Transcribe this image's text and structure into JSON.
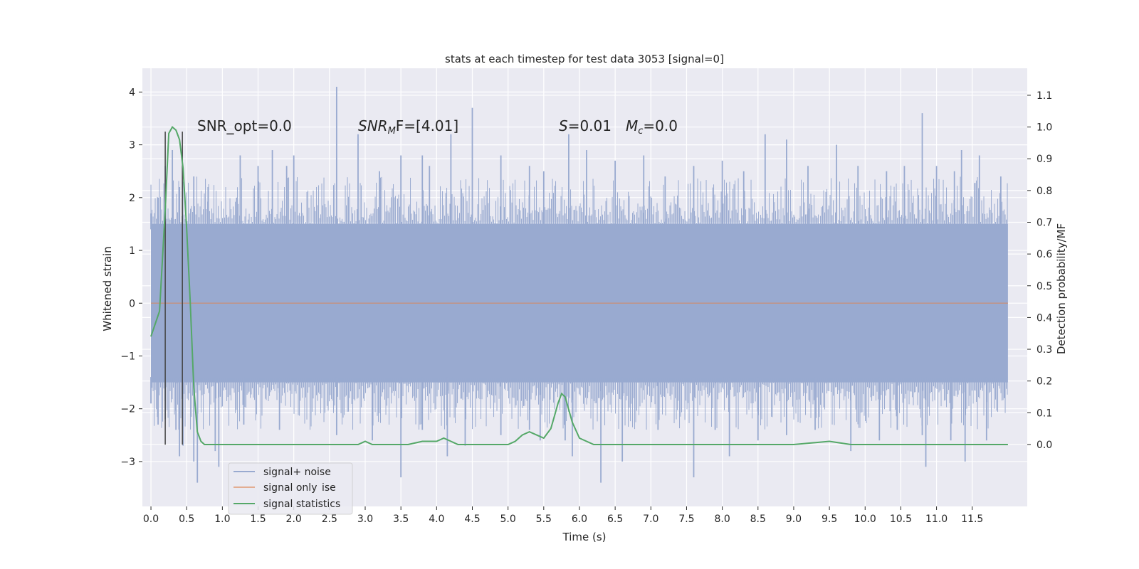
{
  "chart_data": {
    "type": "line",
    "title": "stats at each timestep for test data 3053 [signal=0]",
    "xlabel": "Time (s)",
    "ylabel": "Whitened strain",
    "y2label": "Detection probability/MF",
    "xlim": [
      -0.12,
      12.27
    ],
    "ylim": [
      -3.85,
      4.45
    ],
    "y2lim": [
      -0.195,
      1.185
    ],
    "x_ticks": [
      0.0,
      0.5,
      1.0,
      1.5,
      2.0,
      2.5,
      3.0,
      3.5,
      4.0,
      4.5,
      5.0,
      5.5,
      6.0,
      6.5,
      7.0,
      7.5,
      8.0,
      8.5,
      9.0,
      9.5,
      10.0,
      10.5,
      11.0,
      11.5
    ],
    "x_tick_labels": [
      "0.0",
      "0.5",
      "1.0",
      "1.5",
      "2.0",
      "2.5",
      "3.0",
      "3.5",
      "4.0",
      "4.5",
      "5.0",
      "5.5",
      "6.0",
      "6.5",
      "7.0",
      "7.5",
      "8.0",
      "8.5",
      "9.0",
      "9.5",
      "10.0",
      "10.5",
      "11.0",
      "11.5"
    ],
    "y_ticks": [
      -3,
      -2,
      -1,
      0,
      1,
      2,
      3,
      4
    ],
    "y_tick_labels": [
      "−3",
      "−2",
      "−1",
      "0",
      "1",
      "2",
      "3",
      "4"
    ],
    "y2_ticks": [
      0.0,
      0.1,
      0.2,
      0.3,
      0.4,
      0.5,
      0.6,
      0.7,
      0.8,
      0.9,
      1.0,
      1.1
    ],
    "y2_tick_labels": [
      "0.0",
      "0.1",
      "0.2",
      "0.3",
      "0.4",
      "0.5",
      "0.6",
      "0.7",
      "0.8",
      "0.9",
      "1.0",
      "1.1"
    ],
    "grid": true,
    "legend_position": "bottom-left",
    "noise": {
      "x_range": [
        0.0,
        12.0
      ],
      "envelope_upper": [
        1.5,
        1.5,
        1.5,
        1.5,
        1.5,
        1.5,
        1.5,
        1.5,
        1.5,
        1.5,
        1.5,
        1.5,
        1.5
      ],
      "envelope_lower": [
        -1.5,
        -1.5,
        -1.5,
        -1.5,
        -1.5,
        -1.5,
        -1.5,
        -1.5,
        -1.5,
        -1.5,
        -1.5,
        -1.5,
        -1.5
      ],
      "spikes_up": [
        [
          0.0,
          1.7
        ],
        [
          0.1,
          2.0
        ],
        [
          0.2,
          2.6
        ],
        [
          0.3,
          2.9
        ],
        [
          0.4,
          2.2
        ],
        [
          0.55,
          1.5
        ],
        [
          0.6,
          2.4
        ],
        [
          0.8,
          2.2
        ],
        [
          1.2,
          2.0
        ],
        [
          1.25,
          2.8
        ],
        [
          1.5,
          2.6
        ],
        [
          1.7,
          2.9
        ],
        [
          1.9,
          2.6
        ],
        [
          2.0,
          2.8
        ],
        [
          2.6,
          4.1
        ],
        [
          2.9,
          3.2
        ],
        [
          3.2,
          2.5
        ],
        [
          3.5,
          2.8
        ],
        [
          3.8,
          2.8
        ],
        [
          3.9,
          2.6
        ],
        [
          4.2,
          3.2
        ],
        [
          4.5,
          3.7
        ],
        [
          4.9,
          2.8
        ],
        [
          5.3,
          2.6
        ],
        [
          5.5,
          2.5
        ],
        [
          5.85,
          3.2
        ],
        [
          6.1,
          2.9
        ],
        [
          6.5,
          2.7
        ],
        [
          6.9,
          2.8
        ],
        [
          7.2,
          2.4
        ],
        [
          7.6,
          2.6
        ],
        [
          8.0,
          2.7
        ],
        [
          8.3,
          2.5
        ],
        [
          8.6,
          3.2
        ],
        [
          8.9,
          3.1
        ],
        [
          9.2,
          2.6
        ],
        [
          9.6,
          3.0
        ],
        [
          9.9,
          2.6
        ],
        [
          10.3,
          2.5
        ],
        [
          10.55,
          2.6
        ],
        [
          10.8,
          3.6
        ],
        [
          11.0,
          2.6
        ],
        [
          11.25,
          2.5
        ],
        [
          11.35,
          2.9
        ],
        [
          11.6,
          2.8
        ],
        [
          11.9,
          2.4
        ]
      ],
      "spikes_down": [
        [
          0.0,
          -1.9
        ],
        [
          0.1,
          -2.3
        ],
        [
          0.2,
          -2.2
        ],
        [
          0.35,
          -2.4
        ],
        [
          0.4,
          -2.9
        ],
        [
          0.45,
          -2.7
        ],
        [
          0.6,
          -3.0
        ],
        [
          0.65,
          -3.4
        ],
        [
          0.9,
          -2.8
        ],
        [
          0.95,
          -3.1
        ],
        [
          1.3,
          -2.3
        ],
        [
          1.8,
          -2.4
        ],
        [
          2.6,
          -2.5
        ],
        [
          3.1,
          -2.6
        ],
        [
          3.5,
          -3.3
        ],
        [
          3.8,
          -2.4
        ],
        [
          4.15,
          -2.9
        ],
        [
          4.4,
          -2.7
        ],
        [
          4.9,
          -2.5
        ],
        [
          5.3,
          -2.4
        ],
        [
          5.45,
          -2.6
        ],
        [
          5.8,
          -2.6
        ],
        [
          5.9,
          -2.9
        ],
        [
          6.3,
          -3.4
        ],
        [
          6.6,
          -3.0
        ],
        [
          7.1,
          -2.4
        ],
        [
          7.6,
          -3.3
        ],
        [
          7.9,
          -2.4
        ],
        [
          8.1,
          -2.9
        ],
        [
          8.5,
          -2.6
        ],
        [
          8.9,
          -2.5
        ],
        [
          9.3,
          -2.4
        ],
        [
          9.8,
          -2.8
        ],
        [
          10.2,
          -2.6
        ],
        [
          10.45,
          -2.4
        ],
        [
          10.8,
          -2.5
        ],
        [
          10.85,
          -3.1
        ],
        [
          11.2,
          -2.6
        ],
        [
          11.4,
          -3.0
        ],
        [
          11.7,
          -2.6
        ],
        [
          11.95,
          -1.8
        ]
      ]
    },
    "signal_only": {
      "x": [
        0.0,
        12.0
      ],
      "y": [
        0.0,
        0.0
      ]
    },
    "signal_statistics": {
      "x": [
        0.0,
        0.12,
        0.2,
        0.25,
        0.3,
        0.35,
        0.4,
        0.45,
        0.5,
        0.55,
        0.6,
        0.65,
        0.7,
        0.75,
        0.8,
        1.0,
        2.0,
        2.9,
        3.0,
        3.1,
        3.3,
        3.6,
        3.8,
        4.0,
        4.1,
        4.2,
        4.3,
        4.5,
        5.0,
        5.1,
        5.2,
        5.3,
        5.4,
        5.5,
        5.6,
        5.65,
        5.7,
        5.75,
        5.8,
        5.85,
        5.9,
        6.0,
        6.2,
        6.5,
        7.0,
        8.0,
        9.0,
        9.5,
        9.8,
        10.2,
        10.5,
        11.0,
        12.0
      ],
      "y": [
        0.34,
        0.42,
        0.74,
        0.98,
        1.0,
        0.99,
        0.96,
        0.87,
        0.68,
        0.45,
        0.18,
        0.04,
        0.01,
        0.0,
        0.0,
        0.0,
        0.0,
        0.0,
        0.01,
        0.0,
        0.0,
        0.0,
        0.01,
        0.01,
        0.02,
        0.01,
        0.0,
        0.0,
        0.0,
        0.01,
        0.03,
        0.04,
        0.03,
        0.02,
        0.05,
        0.09,
        0.13,
        0.16,
        0.15,
        0.11,
        0.07,
        0.02,
        0.0,
        0.0,
        0.0,
        0.0,
        0.0,
        0.01,
        0.0,
        0.0,
        0.0,
        0.0,
        0.0
      ]
    },
    "vertical_lines": [
      {
        "x": 0.2,
        "y_top": 3.25,
        "y_bottom": -2.68
      },
      {
        "x": 0.44,
        "y_top": 3.25,
        "y_bottom": -2.68
      }
    ],
    "annotations": {
      "snr_opt_text": "SNR_opt=0.0",
      "snr_mf_main": "SNR",
      "snr_mf_sub": "M",
      "snr_mf_rest": "F=[4.01]",
      "s_symbol": "S",
      "s_value": "=0.01",
      "mc_symbol": "M",
      "mc_sub": "c",
      "mc_value": "=0.0"
    },
    "series": [
      {
        "name": "signal+ noise",
        "color": "#99aad0"
      },
      {
        "name": "signal only",
        "color": "#dd8452"
      },
      {
        "name": "signal statistics",
        "color": "#55a868"
      }
    ],
    "legend_ghost_text": "ise"
  }
}
